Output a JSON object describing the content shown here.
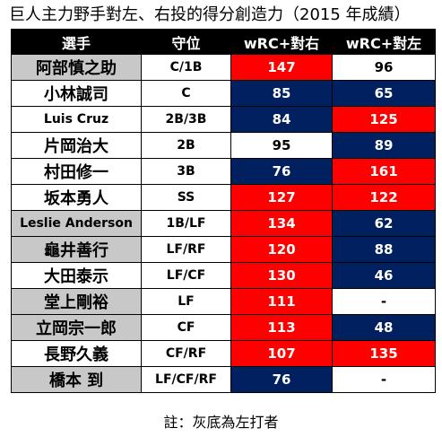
{
  "title": "巨人主力野手對左、右投的得分創造力（2015 年成績）",
  "headers": [
    "選手",
    "守位",
    "wRC+對右",
    "wRC+對左"
  ],
  "colors": {
    "red": "#ff0000",
    "blue": "#002060",
    "gray": "#c8c8c8",
    "header": "#000000"
  },
  "rows": [
    {
      "name": "阿部慎之助",
      "pos": "C/1B",
      "vs_right": "147",
      "vs_left": "96",
      "name_gray": true,
      "right_color": "red",
      "left_color": "white"
    },
    {
      "name": "小林誠司",
      "pos": "C",
      "vs_right": "85",
      "vs_left": "65",
      "name_gray": false,
      "right_color": "blue",
      "left_color": "blue"
    },
    {
      "name": "Luis Cruz",
      "pos": "2B/3B",
      "vs_right": "84",
      "vs_left": "125",
      "name_gray": false,
      "right_color": "blue",
      "left_color": "red"
    },
    {
      "name": "片岡治大",
      "pos": "2B",
      "vs_right": "95",
      "vs_left": "89",
      "name_gray": false,
      "right_color": "white",
      "left_color": "blue"
    },
    {
      "name": "村田修一",
      "pos": "3B",
      "vs_right": "76",
      "vs_left": "161",
      "name_gray": false,
      "right_color": "blue",
      "left_color": "red"
    },
    {
      "name": "坂本勇人",
      "pos": "SS",
      "vs_right": "127",
      "vs_left": "122",
      "name_gray": false,
      "right_color": "red",
      "left_color": "red"
    },
    {
      "name": "Leslie Anderson",
      "pos": "1B/LF",
      "vs_right": "134",
      "vs_left": "62",
      "name_gray": true,
      "right_color": "red",
      "left_color": "blue"
    },
    {
      "name": "龜井善行",
      "pos": "LF/RF",
      "vs_right": "120",
      "vs_left": "88",
      "name_gray": true,
      "right_color": "red",
      "left_color": "blue"
    },
    {
      "name": "大田泰示",
      "pos": "LF/CF",
      "vs_right": "130",
      "vs_left": "46",
      "name_gray": false,
      "right_color": "red",
      "left_color": "blue"
    },
    {
      "name": "堂上剛裕",
      "pos": "LF",
      "vs_right": "111",
      "vs_left": "-",
      "name_gray": true,
      "right_color": "red",
      "left_color": "white"
    },
    {
      "name": "立岡宗一郎",
      "pos": "CF",
      "vs_right": "113",
      "vs_left": "48",
      "name_gray": true,
      "right_color": "red",
      "left_color": "blue"
    },
    {
      "name": "長野久義",
      "pos": "CF/RF",
      "vs_right": "107",
      "vs_left": "135",
      "name_gray": false,
      "right_color": "red",
      "left_color": "red"
    },
    {
      "name": "橋本 到",
      "pos": "LF/CF/RF",
      "vs_right": "76",
      "vs_left": "-",
      "name_gray": true,
      "right_color": "blue",
      "left_color": "white"
    }
  ],
  "note": "註：灰底為左打者"
}
